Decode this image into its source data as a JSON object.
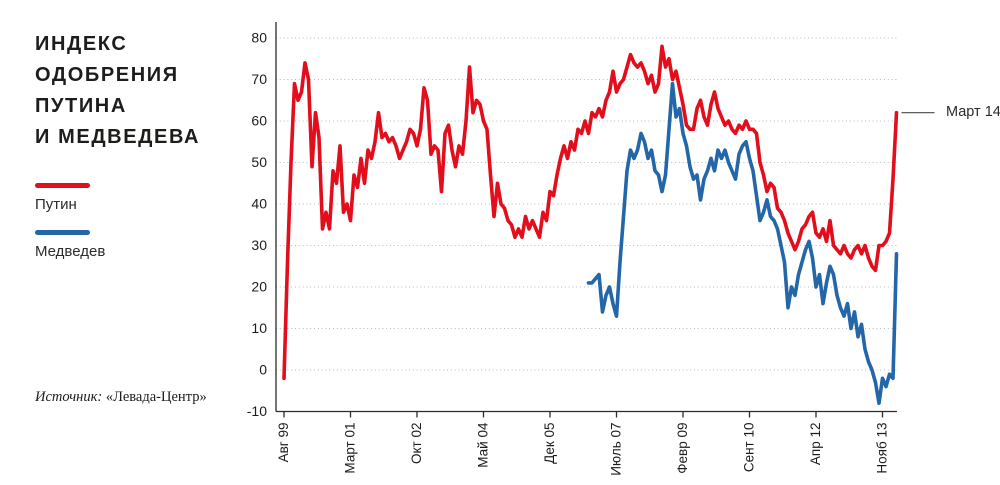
{
  "title": {
    "lines": [
      "ИНДЕКС",
      "ОДОБРЕНИЯ",
      "ПУТИНА",
      "И МЕДВЕДЕВА"
    ]
  },
  "source": {
    "prefix": "Источник:",
    "name": "«Левада-Центр»"
  },
  "chart_data": {
    "type": "line",
    "title": "ИНДЕКС ОДОБРЕНИЯ ПУТИНА И МЕДВЕДЕВА",
    "grid": "horizontal-dotted",
    "legend_position": "left",
    "x_axis": {
      "unit": "months since Авг 99 (month 0 = Авг 99, monthly data)",
      "tick_labels": [
        "Авг 99",
        "Март 01",
        "Окт 02",
        "Май 04",
        "Дек 05",
        "Июль 07",
        "Февр 09",
        "Сент 10",
        "Апр 12",
        "Нояб 13"
      ],
      "tick_months": [
        0,
        19,
        38,
        57,
        76,
        95,
        114,
        133,
        152,
        171
      ],
      "label_rotation": -90
    },
    "y_axis": {
      "min": -10,
      "max": 80,
      "step": 10,
      "ticks": [
        80,
        70,
        60,
        50,
        40,
        30,
        20,
        10,
        0,
        -10
      ]
    },
    "series": [
      {
        "name": "Путин",
        "color": "#e30e1c",
        "start_month": 0,
        "values": [
          -2,
          26,
          50,
          69,
          65,
          67,
          74,
          70,
          49,
          62,
          56,
          34,
          38,
          34,
          48,
          45,
          54,
          38,
          40,
          36,
          47,
          44,
          51,
          45,
          53,
          51,
          55,
          62,
          56,
          57,
          55,
          56,
          54,
          51,
          53,
          55,
          58,
          57,
          54,
          58,
          68,
          65,
          52,
          54,
          53,
          43,
          57,
          59,
          53,
          49,
          54,
          52,
          60,
          73,
          62,
          65,
          64,
          60,
          58,
          47,
          37,
          45,
          40,
          39,
          36,
          35,
          32,
          34,
          32,
          37,
          34,
          36,
          34,
          32,
          38,
          36,
          43,
          42,
          47,
          51,
          54,
          51,
          55,
          53,
          58,
          57,
          60,
          57,
          62,
          61,
          63,
          61,
          65,
          67,
          72,
          67,
          69,
          70,
          73,
          76,
          74,
          73,
          74,
          72,
          69,
          71,
          67,
          69,
          78,
          73,
          75,
          70,
          72,
          68,
          64,
          59,
          58,
          58,
          63,
          65,
          61,
          59,
          64,
          67,
          63,
          61,
          59,
          60,
          58,
          57,
          59,
          58,
          60,
          58,
          58,
          57,
          50,
          47,
          43,
          45,
          44,
          39,
          38,
          36,
          33,
          31,
          29,
          31,
          34,
          35,
          37,
          38,
          33,
          32,
          34,
          31,
          36,
          30,
          29,
          28,
          30,
          28,
          27,
          29,
          30,
          28,
          30,
          27,
          25,
          24,
          30,
          30,
          31,
          33,
          46,
          62
        ]
      },
      {
        "name": "Медведев",
        "color": "#2367a9",
        "start_month": 87,
        "values": [
          21,
          21,
          22,
          23,
          14,
          18,
          20,
          16,
          13,
          26,
          37,
          48,
          53,
          51,
          53,
          57,
          55,
          51,
          53,
          48,
          47,
          43,
          47,
          58,
          69,
          61,
          63,
          57,
          54,
          49,
          46,
          47,
          41,
          46,
          48,
          51,
          48,
          53,
          51,
          53,
          50,
          48,
          46,
          52,
          54,
          55,
          51,
          48,
          42,
          36,
          38,
          41,
          37,
          36,
          34,
          30,
          26,
          15,
          20,
          18,
          23,
          26,
          29,
          31,
          27,
          20,
          23,
          16,
          21,
          25,
          23,
          18,
          15,
          13,
          16,
          10,
          14,
          8,
          11,
          5,
          2,
          0,
          -3,
          -8,
          -2,
          -4,
          -1,
          -2,
          28
        ]
      }
    ],
    "end_annotation": {
      "label": "Март 14",
      "series": "Путин",
      "month": 175,
      "value": 62
    }
  }
}
